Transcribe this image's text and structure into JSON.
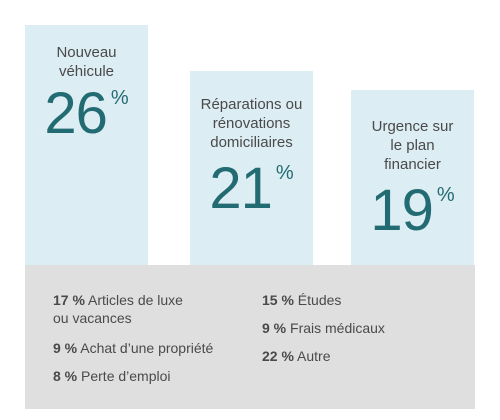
{
  "chart_data": {
    "type": "bar",
    "unit": "%",
    "bars": [
      {
        "label": "Nouveau véhicule",
        "lines": [
          "Nouveau",
          "véhicule"
        ],
        "value": 26,
        "display": "26"
      },
      {
        "label": "Réparations ou rénovations domiciliaires",
        "lines": [
          "Réparations ou",
          "rénovations",
          "domiciliaires"
        ],
        "value": 21,
        "display": "21"
      },
      {
        "label": "Urgence sur le plan financier",
        "lines": [
          "Urgence sur",
          "le plan",
          "financier"
        ],
        "value": 19,
        "display": "19"
      }
    ],
    "others": [
      {
        "value": "17 %",
        "lines": [
          "Articles de luxe",
          "ou vacances"
        ]
      },
      {
        "value": "9 %",
        "lines": [
          "Achat d’une propriété"
        ]
      },
      {
        "value": "8 %",
        "lines": [
          "Perte d’emploi"
        ]
      },
      {
        "value": "15 %",
        "lines": [
          "Études"
        ]
      },
      {
        "value": "9 %",
        "lines": [
          "Frais médicaux"
        ]
      },
      {
        "value": "22 %",
        "lines": [
          "Autre"
        ]
      }
    ]
  },
  "colors": {
    "bar": "#dcedf3",
    "value_text": "#236b72",
    "panel": "#dfdfdf",
    "text": "#4a4a4a"
  }
}
